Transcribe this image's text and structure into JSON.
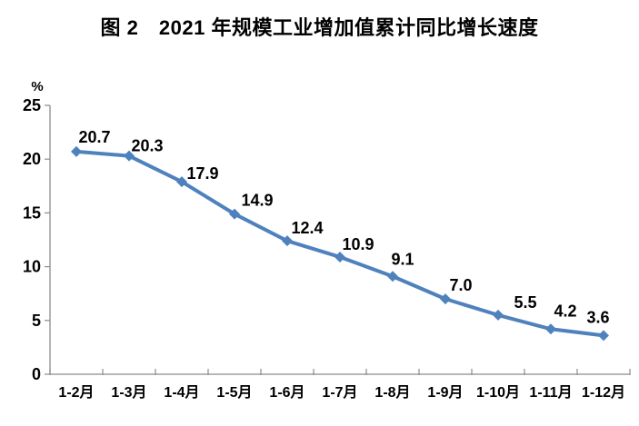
{
  "title": "图 2　2021 年规模工业增加值累计同比增长速度",
  "chart_data": {
    "type": "line",
    "title": "图 2　2021 年规模工业增加值累计同比增长速度",
    "categories": [
      "1-2月",
      "1-3月",
      "1-4月",
      "1-5月",
      "1-6月",
      "1-7月",
      "1-8月",
      "1-9月",
      "1-10月",
      "1-11月",
      "1-12月"
    ],
    "series": [
      {
        "name": "规模工业增加值累计同比增长速度",
        "values": [
          20.7,
          20.3,
          17.9,
          14.9,
          12.4,
          10.9,
          9.1,
          7.0,
          5.5,
          4.2,
          3.6
        ]
      }
    ],
    "data_labels": [
      "20.7",
      "20.3",
      "17.9",
      "14.9",
      "12.4",
      "10.9",
      "9.1",
      "7.0",
      "5.5",
      "4.2",
      "3.6"
    ],
    "xlabel": "",
    "ylabel": "%",
    "ylim": [
      0,
      25
    ],
    "yticks": [
      0,
      5,
      10,
      15,
      20,
      25
    ],
    "grid": false,
    "legend": false,
    "series_color": "#4f81bd",
    "axis_color": "#8c8c8c",
    "label_color": "#000000",
    "background_color": "#ffffff"
  }
}
